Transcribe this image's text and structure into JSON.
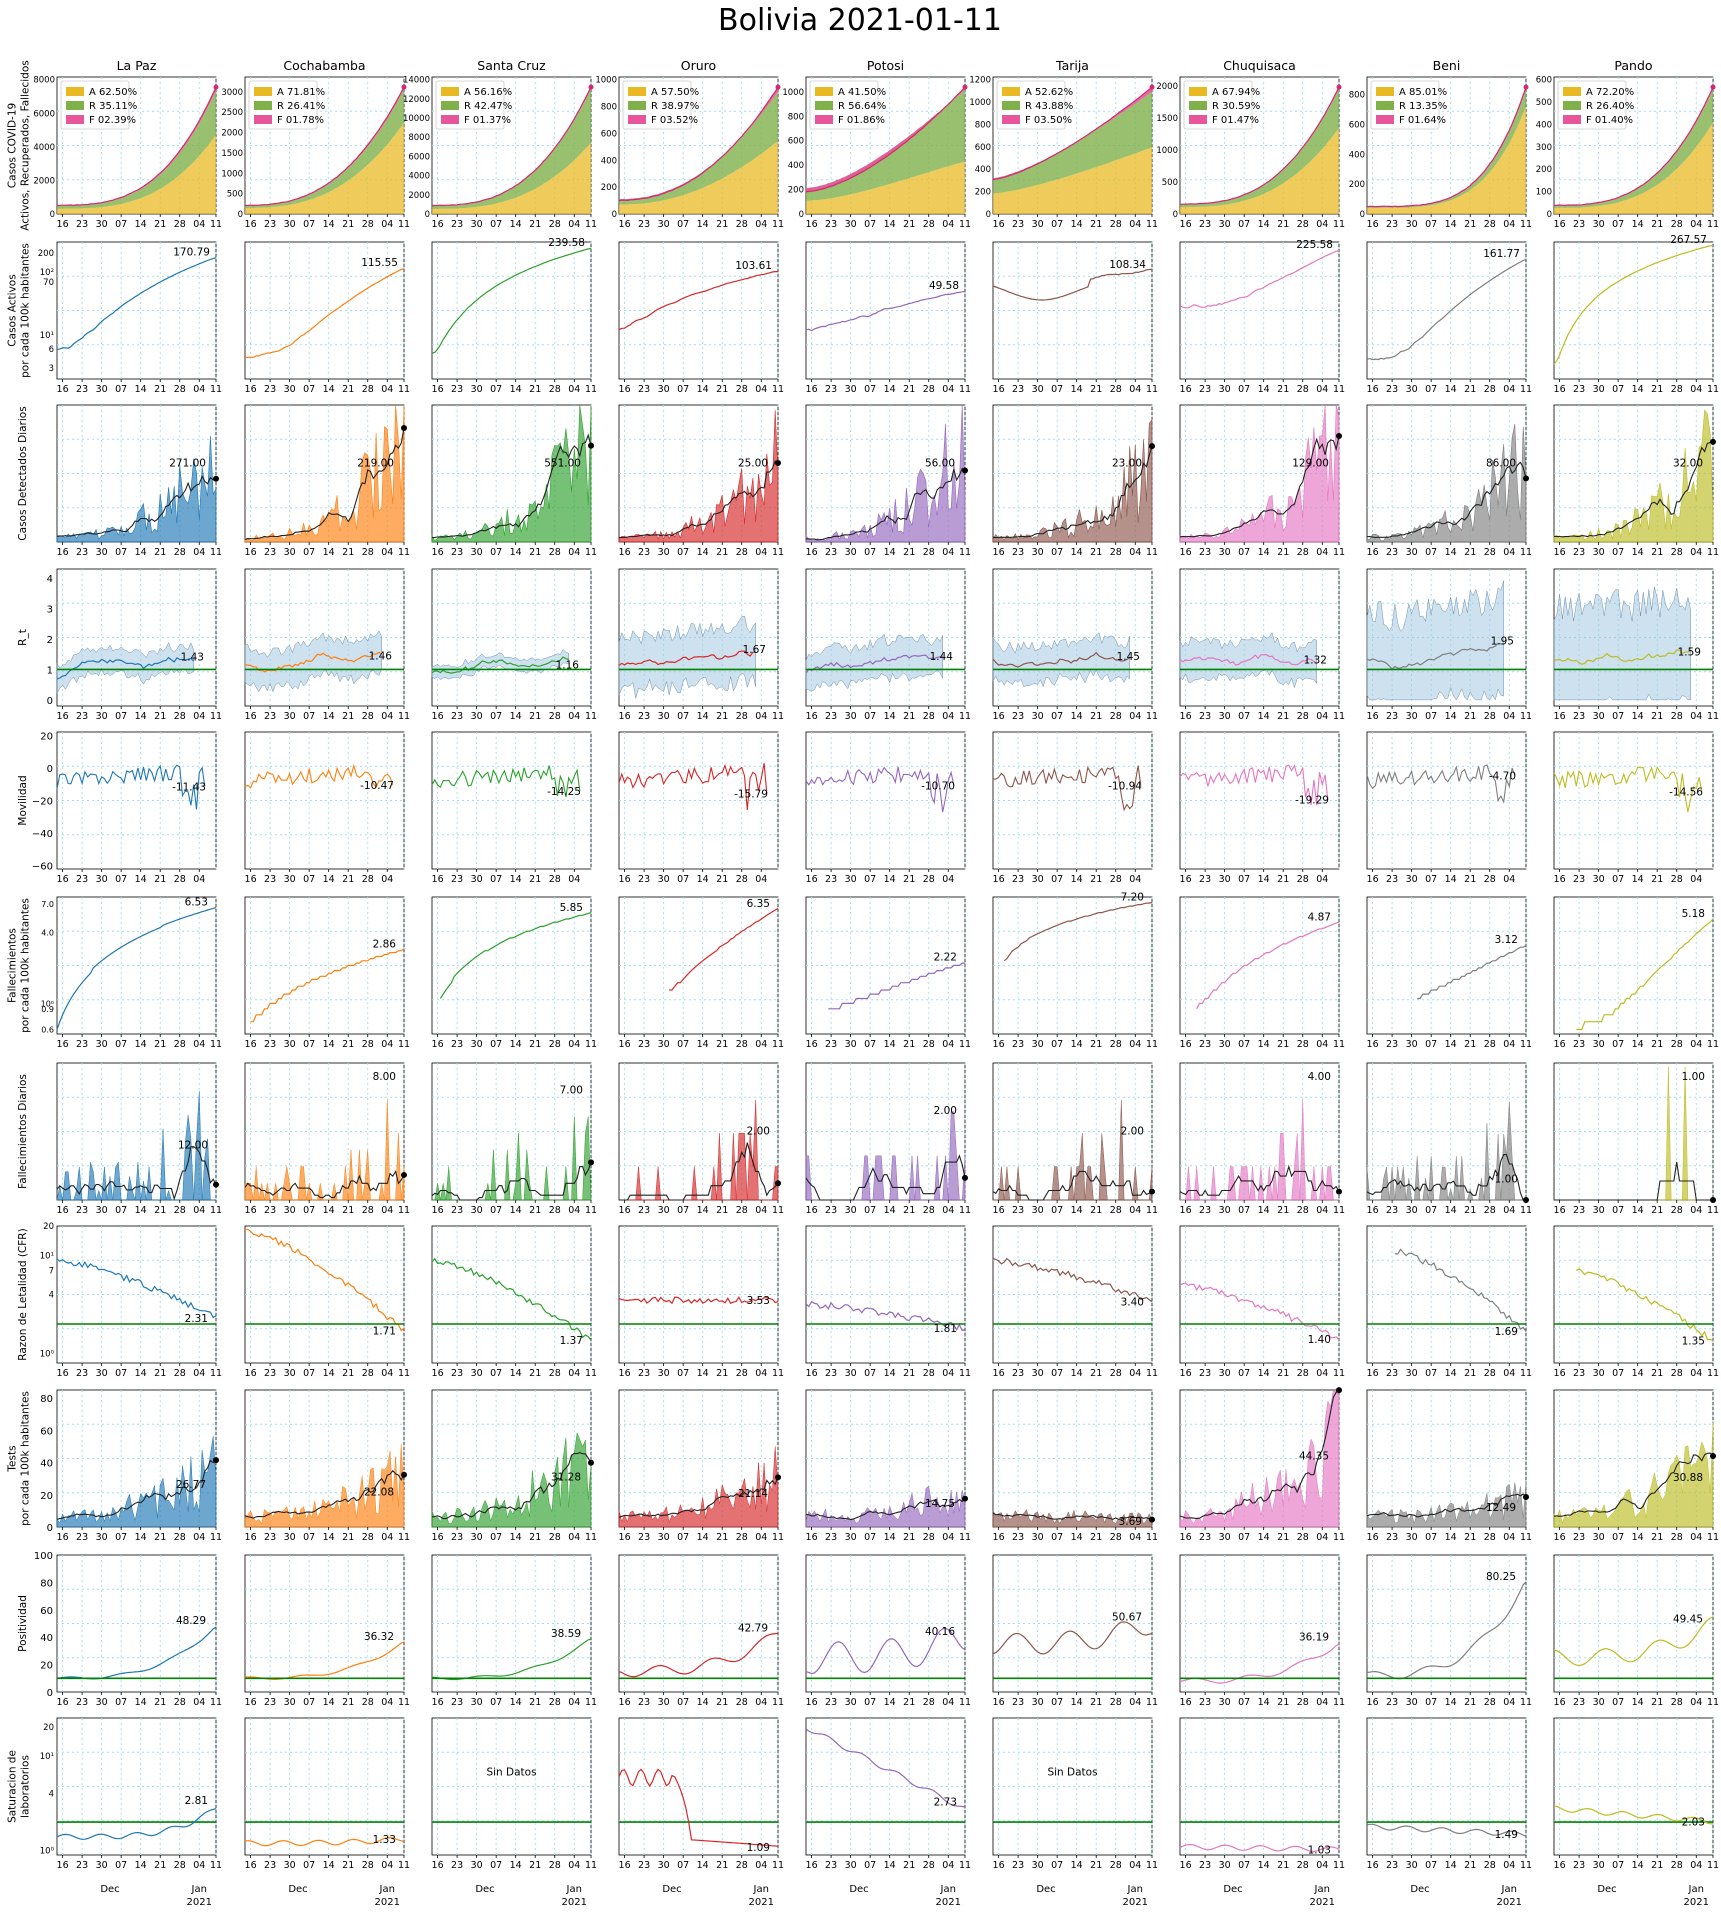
{
  "title": "Bolivia 2021-01-11",
  "departments": [
    "La Paz",
    "Cochabamba",
    "Santa Cruz",
    "Oruro",
    "Potosi",
    "Tarija",
    "Chuquisaca",
    "Beni",
    "Pando"
  ],
  "colors": [
    "#1f77b4",
    "#ff7f0e",
    "#2ca02c",
    "#d62728",
    "#9467bd",
    "#8c564b",
    "#e377c2",
    "#7f7f7f",
    "#bcbd22"
  ],
  "stack_colors": {
    "A": "#e8b923",
    "R": "#7fb04a",
    "F": "#e7559a"
  },
  "ref_line_color": "#008000",
  "x_ticks": [
    "16",
    "23",
    "30",
    "07",
    "14",
    "21",
    "28",
    "04",
    "11"
  ],
  "x_ticks_short": [
    "16",
    "23",
    "30",
    "07",
    "14",
    "21",
    "28",
    "04"
  ],
  "month_labels": {
    "dec": "Dec",
    "jan": "Jan",
    "year": "2021"
  },
  "row_labels": [
    "Casos COVID-19\nActivos, Recuperados, Fallecidos",
    "Casos Activos\npor cada 100k habitantes",
    "Casos Detectados Diarios",
    "R_t",
    "Movilidad",
    "Fallecimientos\npor cada 100k habitantes",
    "Fallecimientos Diarios",
    "Razon de Letalidad (CFR)",
    "Tests\npor cada 100k habitantes",
    "Positividad",
    "Saturacion de\nlaboratorios"
  ],
  "sin_datos": "Sin Datos",
  "chart_data": {
    "type": "line",
    "row0_stack": {
      "legend": [
        [
          "A 62.50%",
          "R 35.11%",
          "F 02.39%"
        ],
        [
          "A 71.81%",
          "R 26.41%",
          "F 01.78%"
        ],
        [
          "A 56.16%",
          "R 42.47%",
          "F 01.37%"
        ],
        [
          "A 57.50%",
          "R 38.97%",
          "F 03.52%"
        ],
        [
          "A 41.50%",
          "R 56.64%",
          "F 01.86%"
        ],
        [
          "A 52.62%",
          "R 43.88%",
          "F 03.50%"
        ],
        [
          "A 67.94%",
          "R 30.59%",
          "F 01.47%"
        ],
        [
          "A 85.01%",
          "R 13.35%",
          "F 01.64%"
        ],
        [
          "A 72.20%",
          "R 26.40%",
          "F 01.40%"
        ]
      ],
      "ymax": [
        8000,
        3300,
        14000,
        1000,
        1100,
        1200,
        2100,
        900,
        600
      ],
      "ytick_left": [
        [
          "0",
          "2000",
          "4000",
          "6000",
          "8000"
        ],
        [
          "0",
          "500",
          "1000",
          "1500",
          "2000",
          "2500",
          "3000"
        ],
        [
          "0",
          "2000",
          "4000",
          "6000",
          "8000",
          "10000",
          "12000",
          "14000"
        ],
        [
          "0",
          "200",
          "400",
          "600",
          "800",
          "1000"
        ],
        [
          "0",
          "200",
          "400",
          "600",
          "800",
          "1000"
        ],
        [
          "0",
          "200",
          "400",
          "600",
          "800",
          "1000",
          "1200"
        ],
        [
          "0",
          "500",
          "1000",
          "1500",
          "2000"
        ],
        [
          "0",
          "200",
          "400",
          "600",
          "800"
        ],
        [
          "0",
          "100",
          "200",
          "300",
          "400",
          "500",
          "600"
        ]
      ]
    },
    "row1_active_per100k": {
      "last_values": [
        "170.79",
        "115.55",
        "239.58",
        "103.61",
        "49.58",
        "108.34",
        "225.58",
        "161.77",
        "267.57"
      ]
    },
    "row2_daily_cases": {
      "last_values": [
        "271.00",
        "219.00",
        "551.00",
        "25.00",
        "56.00",
        "23.00",
        "129.00",
        "86.00",
        "32.00"
      ],
      "ymax": [
        700,
        330,
        900,
        80,
        70,
        110,
        170,
        140,
        75
      ]
    },
    "row3_rt": {
      "last_values": [
        "1.43",
        "1.46",
        "1.16",
        "1.67",
        "1.44",
        "1.45",
        "1.32",
        "1.95",
        "1.59"
      ],
      "yticks": [
        "0",
        "1",
        "2",
        "3",
        "4"
      ]
    },
    "row4_mobility": {
      "last_values": [
        "-11.43",
        "-10.47",
        "-14.25",
        "-15.79",
        "-10.70",
        "-10.94",
        "-19.29",
        "-4.70",
        "-14.56"
      ],
      "yticks": [
        "20",
        "0",
        "−20",
        "−40",
        "−60"
      ]
    },
    "row5_deaths_per100k": {
      "last_values": [
        "6.53",
        "2.86",
        "5.85",
        "6.35",
        "2.22",
        "7.20",
        "4.87",
        "3.12",
        "5.18"
      ]
    },
    "row6_daily_deaths": {
      "last_values": [
        "12.00",
        "8.00",
        "7.00",
        "2.00",
        "2.00",
        "2.00",
        "4.00",
        "1.00",
        "1.00"
      ],
      "ymax": [
        29,
        8.2,
        8.2,
        4.1,
        3.1,
        4.1,
        4.1,
        12.5,
        1.03
      ]
    },
    "row7_cfr": {
      "last_values": [
        "2.31",
        "1.71",
        "1.37",
        "3.53",
        "1.81",
        "3.40",
        "1.40",
        "1.69",
        "1.35"
      ]
    },
    "row8_tests": {
      "last_values": [
        "26.77",
        "22.08",
        "31.28",
        "21.14",
        "14.75",
        "3.69",
        "44.35",
        "12.49",
        "30.88"
      ],
      "yticks": [
        "0",
        "20",
        "40",
        "60",
        "80"
      ]
    },
    "row9_positivity": {
      "last_values": [
        "48.29",
        "36.32",
        "38.59",
        "42.79",
        "40.16",
        "50.67",
        "36.19",
        "80.25",
        "49.45"
      ],
      "yticks": [
        "0",
        "20",
        "40",
        "60",
        "80",
        "100"
      ]
    },
    "row10_lab_saturation": {
      "last_values": [
        "2.81",
        "1.33",
        "",
        "1.09",
        "2.73",
        "",
        "1.03",
        "1.49",
        "2.03"
      ],
      "no_data": [
        false,
        false,
        true,
        false,
        false,
        true,
        false,
        false,
        false
      ]
    }
  }
}
